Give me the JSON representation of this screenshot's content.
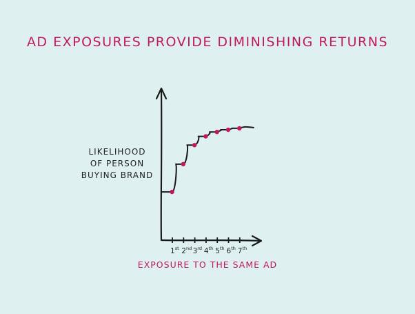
{
  "chart_data": {
    "type": "line",
    "title": "AD EXPOSURES PROVIDE DIMINISHING RETURNS",
    "xlabel": "EXPOSURE TO THE SAME AD",
    "ylabel": "LIKELIHOOD\nOF PERSON\nBUYING BRAND",
    "categories": [
      {
        "n": "1",
        "sup": "st"
      },
      {
        "n": "2",
        "sup": "nd"
      },
      {
        "n": "3",
        "sup": "rd"
      },
      {
        "n": "4",
        "sup": "th"
      },
      {
        "n": "5",
        "sup": "th"
      },
      {
        "n": "6",
        "sup": "th"
      },
      {
        "n": "7",
        "sup": "th"
      }
    ],
    "baseline": 0.33,
    "values": [
      0.33,
      0.52,
      0.65,
      0.71,
      0.74,
      0.755,
      0.765
    ],
    "tail": 0.77,
    "ylim": [
      0,
      1
    ],
    "grid": false,
    "colors": {
      "accent": "#c0195f",
      "line": "#1a1a1a",
      "background": "#dff0f0"
    }
  }
}
